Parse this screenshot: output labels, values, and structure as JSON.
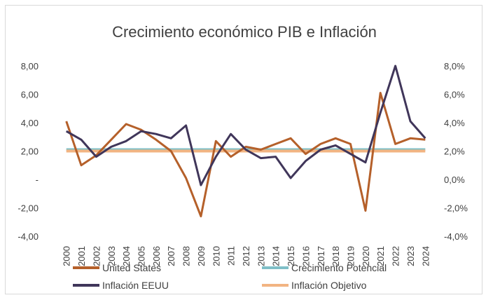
{
  "chart_data": {
    "type": "line",
    "title": "Crecimiento económico PIB e Inflación",
    "categories": [
      "2000",
      "2001",
      "2002",
      "2003",
      "2004",
      "2005",
      "2006",
      "2007",
      "2008",
      "2009",
      "2010",
      "2011",
      "2012",
      "2013",
      "2014",
      "2015",
      "2016",
      "2017",
      "2018",
      "2019",
      "2020",
      "2021",
      "2022",
      "2023",
      "2024"
    ],
    "left_axis": {
      "ylim": [
        -4,
        8
      ],
      "ticks": [
        -4,
        -2,
        0,
        2,
        4,
        6,
        8
      ],
      "tick_labels": [
        "-4,00",
        "-2,00",
        "-",
        "2,00",
        "4,00",
        "6,00",
        "8,00"
      ]
    },
    "right_axis": {
      "ylim": [
        -4,
        8
      ],
      "ticks": [
        -4,
        -2,
        0,
        2,
        4,
        6,
        8
      ],
      "tick_labels": [
        "-4,0%",
        "-2,0%",
        "0,0%",
        "2,0%",
        "4,0%",
        "6,0%",
        "8,0%"
      ]
    },
    "series": [
      {
        "name": "United States",
        "axis": "left",
        "color": "#b5602a",
        "values": [
          4.1,
          1.0,
          1.7,
          2.8,
          3.9,
          3.5,
          2.8,
          2.0,
          0.1,
          -2.6,
          2.7,
          1.6,
          2.3,
          2.1,
          2.5,
          2.9,
          1.8,
          2.5,
          2.9,
          2.5,
          -2.2,
          6.1,
          2.5,
          2.9,
          2.8
        ]
      },
      {
        "name": "Crecimiento Potencial",
        "axis": "left",
        "color": "#7fbfc7",
        "values": [
          2.1,
          2.1,
          2.1,
          2.1,
          2.1,
          2.1,
          2.1,
          2.1,
          2.1,
          2.1,
          2.1,
          2.1,
          2.1,
          2.1,
          2.1,
          2.1,
          2.1,
          2.1,
          2.1,
          2.1,
          2.1,
          2.1,
          2.1,
          2.1,
          2.1
        ]
      },
      {
        "name": "Inflación EEUU",
        "axis": "right",
        "color": "#40365a",
        "values": [
          3.4,
          2.8,
          1.6,
          2.3,
          2.7,
          3.4,
          3.2,
          2.9,
          3.8,
          -0.4,
          1.6,
          3.2,
          2.1,
          1.5,
          1.6,
          0.1,
          1.3,
          2.1,
          2.4,
          1.8,
          1.2,
          4.7,
          8.0,
          4.1,
          2.9
        ]
      },
      {
        "name": "Inflación Objetivo",
        "axis": "right",
        "color": "#f2b482",
        "values": [
          2.0,
          2.0,
          2.0,
          2.0,
          2.0,
          2.0,
          2.0,
          2.0,
          2.0,
          2.0,
          2.0,
          2.0,
          2.0,
          2.0,
          2.0,
          2.0,
          2.0,
          2.0,
          2.0,
          2.0,
          2.0,
          2.0,
          2.0,
          2.0,
          2.0
        ]
      }
    ],
    "legend": {
      "placement": "bottom",
      "entries": [
        "United States",
        "Crecimiento Potencial",
        "Inflación EEUU",
        "Inflación Objetivo"
      ]
    },
    "grid": false
  }
}
